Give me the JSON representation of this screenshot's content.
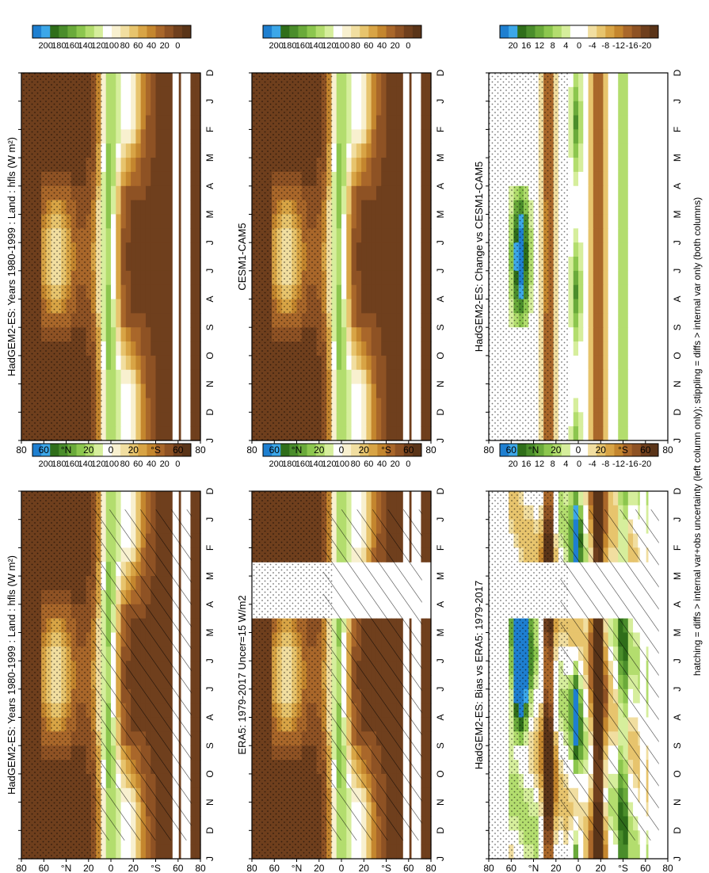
{
  "footnote": "hatching = diffs > internal var+obs uncertainty (left column only); stippling = diffs > internal var only (both columns)",
  "scales": {
    "abs": {
      "labels": [
        "200",
        "180",
        "160",
        "140",
        "120",
        "100",
        "80",
        "60",
        "40",
        "20",
        "0"
      ],
      "colors": [
        "#1e7fd0",
        "#3ca7e8",
        "#2f6e1a",
        "#4a8d2b",
        "#6aaa3a",
        "#8cc64e",
        "#b3dd6e",
        "#d6ee9c",
        "#ffffff",
        "#f8f0cf",
        "#f1dea0",
        "#e7c46d",
        "#d8a445",
        "#c4862e",
        "#a9672a",
        "#8e5224",
        "#6f3f1d",
        "#5a3418"
      ]
    },
    "diff": {
      "labels": [
        "20",
        "16",
        "12",
        "8",
        "4",
        "0",
        "-4",
        "-8",
        "-12",
        "-16",
        "-20"
      ],
      "colors": [
        "#1e7fd0",
        "#3ca7e8",
        "#2f6e1a",
        "#4a8d2b",
        "#6aaa3a",
        "#8cc64e",
        "#b3dd6e",
        "#d6ee9c",
        "#ffffff",
        "#ffffff",
        "#f1dea0",
        "#e7c46d",
        "#d8a445",
        "#c4862e",
        "#a9672a",
        "#8e5224",
        "#6f3f1d",
        "#5a3418"
      ]
    }
  },
  "chart_data": [
    {
      "type": "heatmap",
      "title": "HadGEM2-ES: Years 1980-1999 : Land : hfls (W m²)",
      "column": "left",
      "row": 1,
      "x": [
        "D",
        "J",
        "F",
        "M",
        "A",
        "M",
        "J",
        "J",
        "A",
        "S",
        "O",
        "N",
        "D",
        "J"
      ],
      "y_ticks": [
        "80",
        "60",
        "°N",
        "20",
        "0",
        "20",
        "°S",
        "60",
        "80"
      ],
      "ylim": [
        -90,
        90
      ],
      "scale": "abs",
      "hatching": true,
      "stippling": true
    },
    {
      "type": "heatmap",
      "title": "ERA5: 1979-2017 Uncer=15 W/m2",
      "column": "left",
      "row": 2,
      "x": [
        "D",
        "J",
        "F",
        "M",
        "A",
        "M",
        "J",
        "J",
        "A",
        "S",
        "O",
        "N",
        "D",
        "J"
      ],
      "y_ticks": [
        "80",
        "60",
        "°N",
        "20",
        "0",
        "20",
        "°S",
        "60",
        "80"
      ],
      "ylim": [
        -90,
        90
      ],
      "scale": "abs",
      "missing_months": [
        "F",
        "M",
        "A"
      ],
      "hatching": true,
      "stippling": true
    },
    {
      "type": "heatmap",
      "title": "HadGEM2-ES: Bias vs ERA5: 1979-2017",
      "column": "left",
      "row": 3,
      "x": [
        "D",
        "J",
        "F",
        "M",
        "A",
        "M",
        "J",
        "J",
        "A",
        "S",
        "O",
        "N",
        "D",
        "J"
      ],
      "y_ticks": [
        "80",
        "60",
        "°N",
        "20",
        "0",
        "20",
        "°S",
        "60",
        "80"
      ],
      "ylim": [
        -90,
        90
      ],
      "scale": "diff",
      "missing_months": [
        "F",
        "M",
        "A"
      ],
      "hatching": true,
      "stippling": true
    },
    {
      "type": "heatmap",
      "title": "HadGEM2-ES: Years 1980-1999 : Land : hfls (W m²)",
      "column": "right",
      "row": 1,
      "x": [
        "D",
        "J",
        "F",
        "M",
        "A",
        "M",
        "J",
        "J",
        "A",
        "S",
        "O",
        "N",
        "D",
        "J"
      ],
      "y_ticks": [
        "80",
        "60",
        "°N",
        "20",
        "0",
        "20",
        "°S",
        "60",
        "80"
      ],
      "ylim": [
        -90,
        90
      ],
      "scale": "abs",
      "stippling": true
    },
    {
      "type": "heatmap",
      "title": "CESM1-CAM5",
      "column": "right",
      "row": 2,
      "x": [
        "D",
        "J",
        "F",
        "M",
        "A",
        "M",
        "J",
        "J",
        "A",
        "S",
        "O",
        "N",
        "D",
        "J"
      ],
      "y_ticks": [
        "80",
        "60",
        "°N",
        "20",
        "0",
        "20",
        "°S",
        "60",
        "80"
      ],
      "ylim": [
        -90,
        90
      ],
      "scale": "abs",
      "stippling": true
    },
    {
      "type": "heatmap",
      "title": "HadGEM2-ES: Change vs CESM1-CAM5",
      "column": "right",
      "row": 3,
      "x": [
        "D",
        "J",
        "F",
        "M",
        "A",
        "M",
        "J",
        "J",
        "A",
        "S",
        "O",
        "N",
        "D",
        "J"
      ],
      "y_ticks": [
        "80",
        "60",
        "°N",
        "20",
        "0",
        "20",
        "°S",
        "60",
        "80"
      ],
      "ylim": [
        -90,
        90
      ],
      "scale": "diff",
      "stippling": true
    }
  ]
}
